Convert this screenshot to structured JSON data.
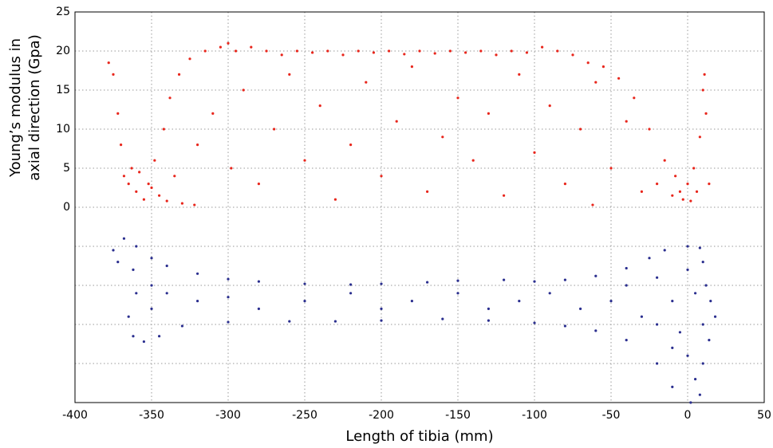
{
  "chart_data": {
    "type": "scatter",
    "xlabel": "Length of tibia (mm)",
    "ylabel_lines": [
      "Young’s modulus in",
      "axial direction (Gpa)"
    ],
    "xlim": [
      -400,
      50
    ],
    "ylim": [
      -25,
      25
    ],
    "xticks": [
      -400,
      -350,
      -300,
      -250,
      -200,
      -150,
      -100,
      -50,
      0,
      50
    ],
    "yticks": [
      0,
      5,
      10,
      15,
      20,
      25
    ],
    "grid_lines_y": [
      -20,
      -15,
      -10,
      -5
    ],
    "grid": true,
    "series": [
      {
        "color": "#e8261c",
        "x": [
          -378,
          -375,
          -372,
          -370,
          -368,
          -365,
          -363,
          -360,
          -358,
          -355,
          -352,
          -350,
          -348,
          -345,
          -342,
          -340,
          -338,
          -335,
          -332,
          -330,
          -325,
          -322,
          -320,
          -315,
          -310,
          -305,
          -300,
          -298,
          -295,
          -290,
          -285,
          -280,
          -275,
          -270,
          -265,
          -260,
          -255,
          -250,
          -245,
          -240,
          -235,
          -230,
          -225,
          -220,
          -215,
          -210,
          -205,
          -200,
          -195,
          -190,
          -185,
          -180,
          -175,
          -170,
          -165,
          -160,
          -155,
          -150,
          -145,
          -140,
          -135,
          -130,
          -125,
          -120,
          -115,
          -110,
          -105,
          -100,
          -95,
          -90,
          -85,
          -80,
          -75,
          -70,
          -65,
          -62,
          -60,
          -55,
          -50,
          -45,
          -40,
          -35,
          -30,
          -25,
          -20,
          -15,
          -10,
          -8,
          -5,
          -3,
          0,
          2,
          4,
          6,
          8,
          10,
          11,
          12,
          14
        ],
        "values": [
          18.5,
          17,
          12,
          8,
          4,
          3,
          5,
          2,
          4.5,
          1,
          3,
          2.5,
          6,
          1.5,
          10,
          0.8,
          14,
          4,
          17,
          0.5,
          19,
          0.3,
          8,
          20,
          12,
          20.5,
          21,
          5,
          20,
          15,
          20.5,
          3,
          20,
          10,
          19.5,
          17,
          20,
          6,
          19.8,
          13,
          20,
          1,
          19.5,
          8,
          20,
          16,
          19.8,
          4,
          20,
          11,
          19.6,
          18,
          20,
          2,
          19.7,
          9,
          20,
          14,
          19.8,
          6,
          20,
          12,
          19.5,
          1.5,
          20,
          17,
          19.8,
          7,
          20.5,
          13,
          20,
          3,
          19.5,
          10,
          18.5,
          0.3,
          16,
          18,
          5,
          16.5,
          11,
          14,
          2,
          10,
          3,
          6,
          1.5,
          4,
          2,
          1,
          3,
          0.8,
          5,
          2,
          9,
          15,
          17,
          12,
          3
        ]
      },
      {
        "color": "#2b2f8f",
        "x": [
          -368,
          -375,
          -372,
          -360,
          -350,
          -340,
          -320,
          -300,
          -280,
          -250,
          -220,
          -200,
          -170,
          -150,
          -120,
          -100,
          -80,
          -60,
          -40,
          -25,
          -15,
          0,
          8,
          10,
          12,
          15,
          18,
          14,
          10,
          8,
          2,
          -10,
          -20,
          -40,
          -60,
          -80,
          -100,
          -130,
          -160,
          -200,
          -230,
          -260,
          -300,
          -330,
          -345,
          -355,
          -362,
          -365,
          -360,
          -362,
          -350,
          -350,
          -340,
          -320,
          -300,
          -280,
          -250,
          -220,
          -200,
          -180,
          -150,
          -130,
          -110,
          -90,
          -70,
          -50,
          -40,
          -30,
          -20,
          -10,
          -5,
          0,
          0,
          5,
          5,
          -10,
          10,
          -20
        ],
        "values": [
          -4,
          -5.5,
          -7,
          -5,
          -6.5,
          -7.5,
          -8.5,
          -9.2,
          -9.5,
          -9.8,
          -9.9,
          -9.8,
          -9.6,
          -9.4,
          -9.3,
          -9.5,
          -9.3,
          -8.8,
          -7.8,
          -6.5,
          -5.5,
          -5,
          -5.2,
          -7,
          -10,
          -12,
          -14,
          -17,
          -20,
          -24,
          -25,
          -23,
          -20,
          -17,
          -15.8,
          -15.2,
          -14.8,
          -14.5,
          -14.3,
          -14.5,
          -14.6,
          -14.6,
          -14.7,
          -15.2,
          -16.5,
          -17.2,
          -16.5,
          -14,
          -11,
          -8,
          -10,
          -13,
          -11,
          -12,
          -11.5,
          -13,
          -12,
          -11,
          -13,
          -12,
          -11,
          -13,
          -12,
          -11,
          -13,
          -12,
          -10,
          -14,
          -9,
          -12,
          -16,
          -8,
          -19,
          -11,
          -22,
          -18,
          -15,
          -15
        ]
      }
    ]
  }
}
